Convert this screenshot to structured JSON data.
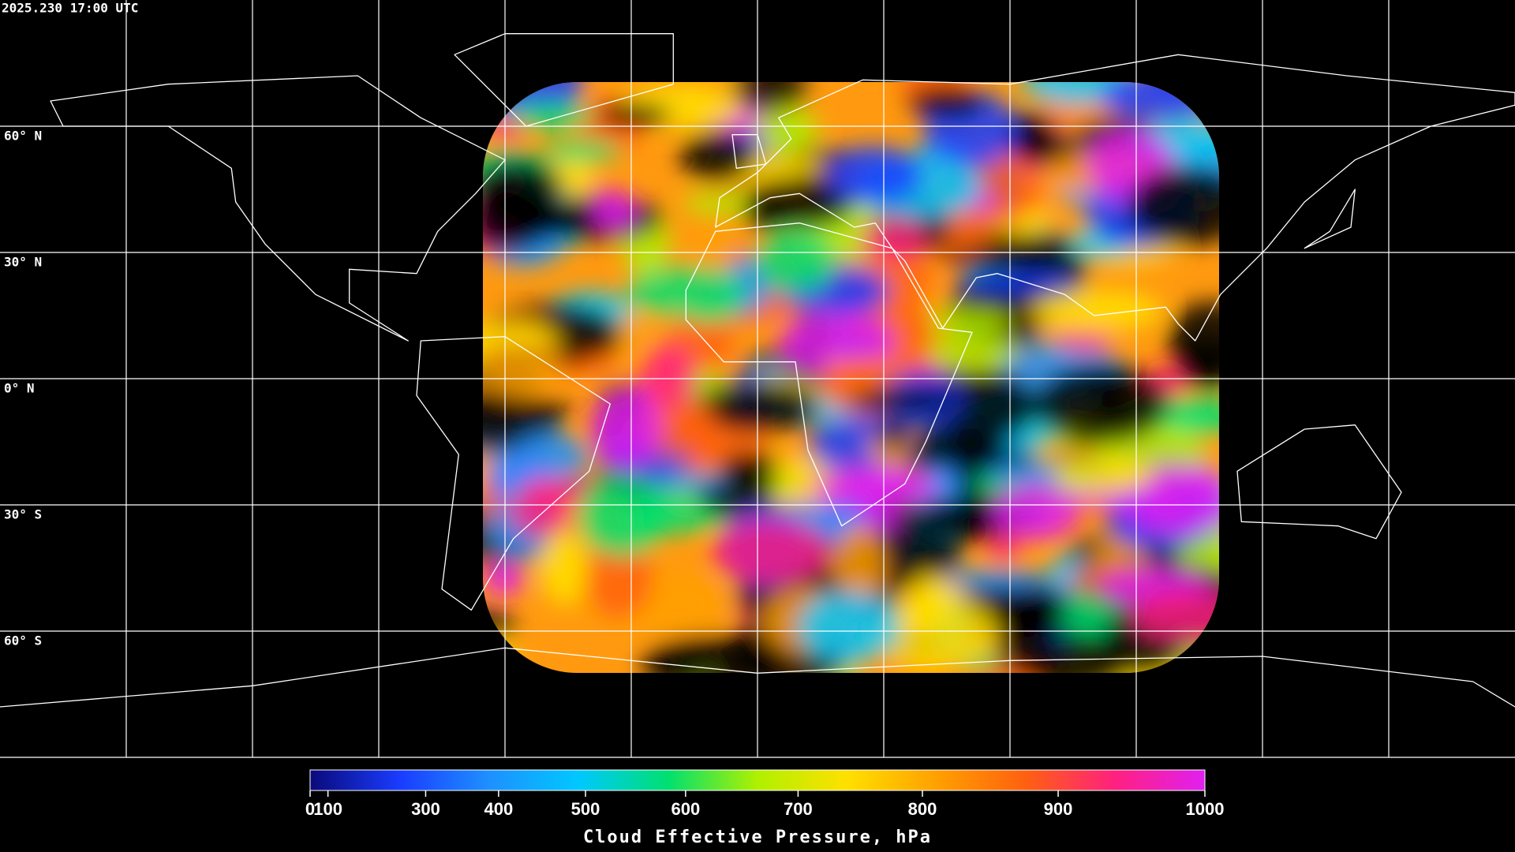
{
  "header": {
    "timestamp": "2025.230 17:00 UTC"
  },
  "map": {
    "lat_labels": [
      "60° N",
      "30° N",
      "0° N",
      "30° S",
      "60° S"
    ]
  },
  "colorbar": {
    "title": "Cloud Effective Pressure, hPa",
    "range": [
      0,
      1000
    ],
    "scale": "power",
    "exponent": 1.7,
    "ticks": [
      0,
      100,
      300,
      400,
      500,
      600,
      700,
      800,
      900,
      1000
    ],
    "colors": [
      "#0a0a7a",
      "#1a3cff",
      "#1e90ff",
      "#00c8ff",
      "#00e070",
      "#b0f000",
      "#ffe000",
      "#ffa000",
      "#ff6010",
      "#ff2080",
      "#e020f0"
    ]
  }
}
